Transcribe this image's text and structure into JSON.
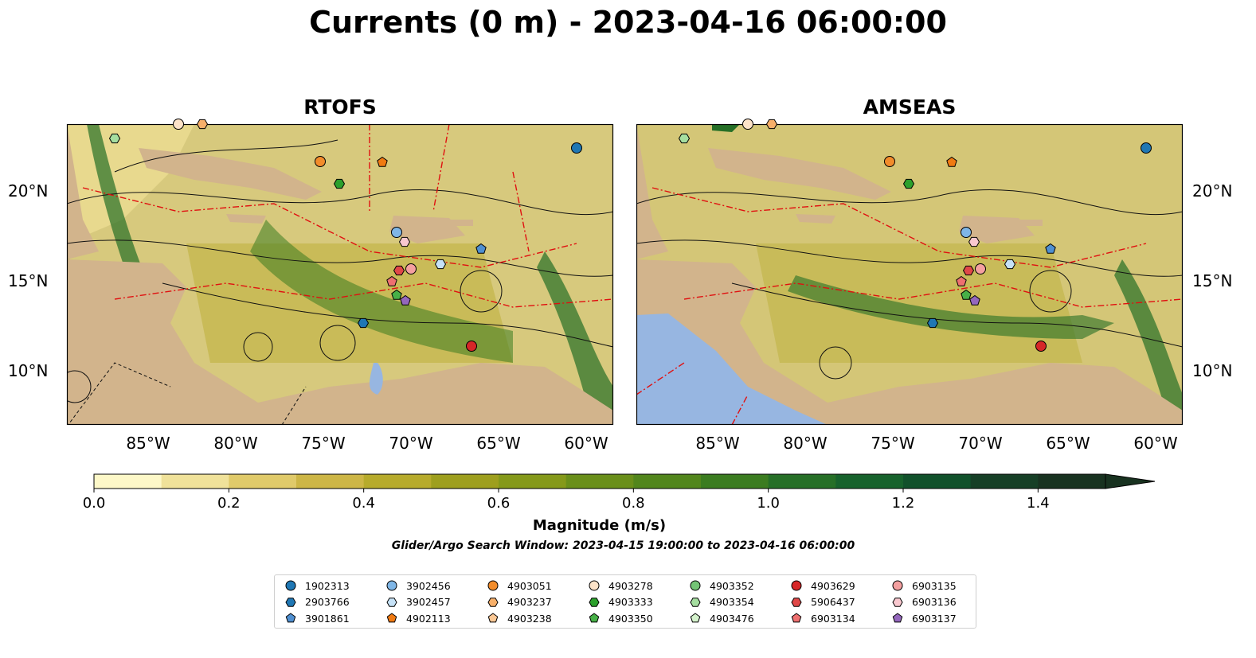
{
  "title": "Currents (0 m) - 2023-04-16 06:00:00",
  "panels": [
    {
      "name": "RTOFS"
    },
    {
      "name": "AMSEAS"
    }
  ],
  "axes": {
    "lon_ticks": [
      "85°W",
      "80°W",
      "75°W",
      "70°W",
      "65°W",
      "60°W"
    ],
    "lat_ticks": [
      "20°N",
      "15°N",
      "10°N"
    ]
  },
  "colorbar": {
    "label": "Magnitude (m/s)",
    "ticks": [
      "0.0",
      "0.2",
      "0.4",
      "0.6",
      "0.8",
      "1.0",
      "1.2",
      "1.4"
    ],
    "range": [
      0,
      1.5
    ],
    "extend": "max",
    "colors": [
      "#fdf8c8",
      "#f0e29a",
      "#e0ca6a",
      "#cdb646",
      "#b7ab2c",
      "#9e9f1e",
      "#85991a",
      "#6a8f1a",
      "#52861c",
      "#3b7c20",
      "#266f27",
      "#17622c",
      "#11512b",
      "#163f26",
      "#183220"
    ]
  },
  "search_window": "Glider/Argo Search Window: 2023-04-15 19:00:00 to 2023-04-16 06:00:00",
  "legend": [
    {
      "label": "1902313",
      "marker": "circle",
      "color": "#1f77b4"
    },
    {
      "label": "2903766",
      "marker": "hexagon",
      "color": "#1f77b4"
    },
    {
      "label": "3901861",
      "marker": "pentagon",
      "color": "#4f8fd0"
    },
    {
      "label": "3902456",
      "marker": "circle",
      "color": "#7fb6e6"
    },
    {
      "label": "3902457",
      "marker": "hexagon",
      "color": "#c6e2f7"
    },
    {
      "label": "4902113",
      "marker": "pentagon",
      "color": "#f07a12"
    },
    {
      "label": "4903051",
      "marker": "circle",
      "color": "#f28c2b"
    },
    {
      "label": "4903237",
      "marker": "hexagon",
      "color": "#f8b06a"
    },
    {
      "label": "4903238",
      "marker": "pentagon",
      "color": "#fbc895"
    },
    {
      "label": "4903278",
      "marker": "circle",
      "color": "#fde3c8"
    },
    {
      "label": "4903333",
      "marker": "hexagon",
      "color": "#2ca02c"
    },
    {
      "label": "4903350",
      "marker": "pentagon",
      "color": "#47b047"
    },
    {
      "label": "4903352",
      "marker": "circle",
      "color": "#74c476"
    },
    {
      "label": "4903354",
      "marker": "hexagon",
      "color": "#a5dea0"
    },
    {
      "label": "4903476",
      "marker": "pentagon",
      "color": "#d4f2cc"
    },
    {
      "label": "4903629",
      "marker": "circle",
      "color": "#d62728"
    },
    {
      "label": "5906437",
      "marker": "hexagon",
      "color": "#e04848"
    },
    {
      "label": "6903134",
      "marker": "pentagon",
      "color": "#ee7070"
    },
    {
      "label": "6903135",
      "marker": "circle",
      "color": "#f4a0a0"
    },
    {
      "label": "6903136",
      "marker": "hexagon",
      "color": "#f9c8cf"
    },
    {
      "label": "6903137",
      "marker": "pentagon",
      "color": "#9467bd"
    }
  ]
}
